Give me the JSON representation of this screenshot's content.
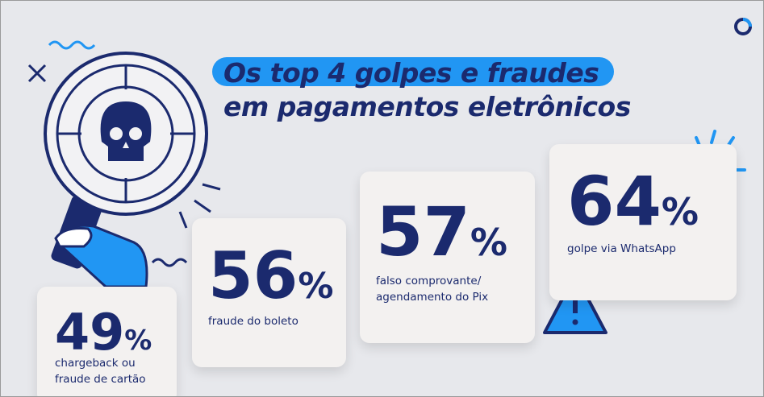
{
  "title": {
    "line1": "Os top 4 golpes e fraudes",
    "line2": "em pagamentos eletrônicos"
  },
  "cards": [
    {
      "value": "49",
      "unit": "%",
      "label": [
        "chargeback ou",
        "fraude de cartão"
      ]
    },
    {
      "value": "56",
      "unit": "%",
      "label": [
        "fraude do boleto"
      ]
    },
    {
      "value": "57",
      "unit": "%",
      "label": [
        "falso comprovante/",
        "agendamento do Pix"
      ]
    },
    {
      "value": "64",
      "unit": "%",
      "label": [
        "golpe via WhatsApp"
      ]
    }
  ]
}
